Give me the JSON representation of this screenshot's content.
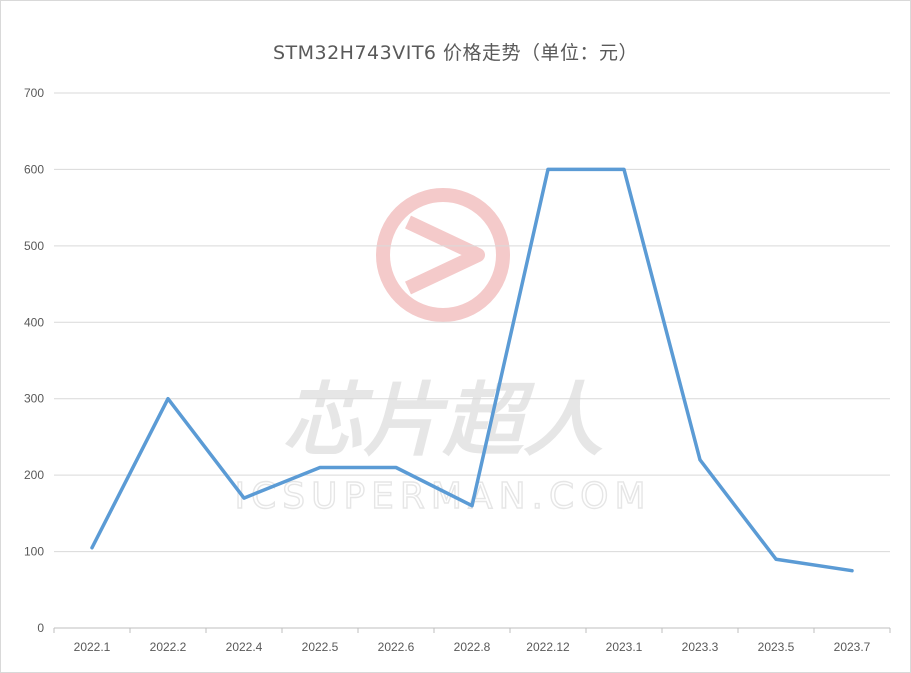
{
  "chart_data": {
    "type": "line",
    "title": "STM32H743VIT6 价格走势（单位：元）",
    "xlabel": "",
    "ylabel": "",
    "categories": [
      "2022.1",
      "2022.2",
      "2022.4",
      "2022.5",
      "2022.6",
      "2022.8",
      "2022.12",
      "2023.1",
      "2023.3",
      "2023.5",
      "2023.7"
    ],
    "series": [
      {
        "values": [
          105,
          300,
          170,
          210,
          210,
          160,
          600,
          600,
          220,
          90,
          75
        ]
      }
    ],
    "ylim": [
      0,
      700
    ],
    "yticks": [
      0,
      100,
      200,
      300,
      400,
      500,
      600,
      700
    ],
    "grid": true,
    "legend": "none",
    "colors": {
      "line": "#5b9bd5",
      "grid": "#d9d9d9",
      "axis": "#bfbfbf",
      "text": "#595959",
      "watermark_logo": "#f2c4c4",
      "watermark_text": "#e3e3e3"
    }
  },
  "watermark": {
    "brand": "芯片超人",
    "domain": "ICSUPERMAN.COM"
  }
}
